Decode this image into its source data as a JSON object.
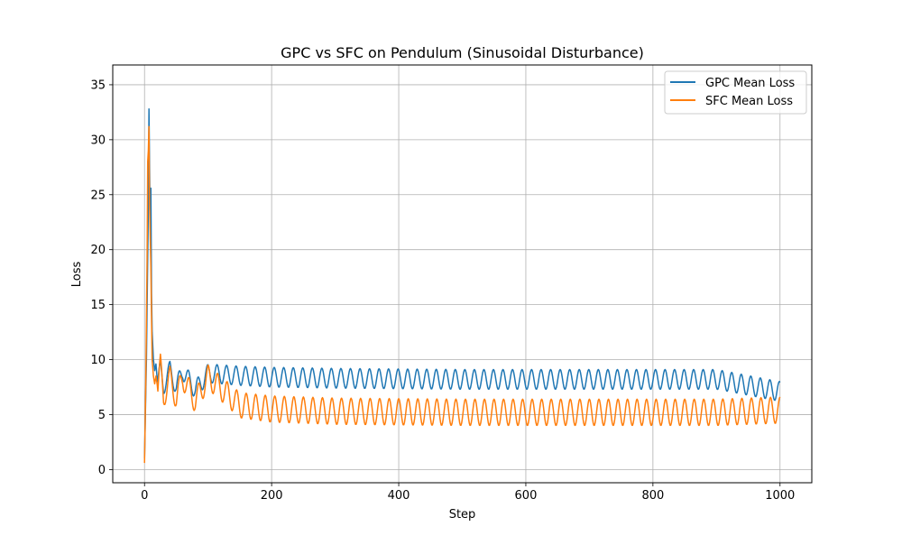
{
  "chart_data": {
    "type": "line",
    "title": "GPC vs SFC on Pendulum (Sinusoidal Disturbance)",
    "xlabel": "Step",
    "ylabel": "Loss",
    "xlim": [
      -50,
      1050
    ],
    "ylim": [
      -1.2,
      36.8
    ],
    "xticks": [
      0,
      200,
      400,
      600,
      800,
      1000
    ],
    "yticks": [
      0,
      5,
      10,
      15,
      20,
      25,
      30,
      35
    ],
    "grid": true,
    "legend": "top-right",
    "series": [
      {
        "name": "GPC Mean Loss",
        "color": "#1f77b4",
        "x": [
          0,
          3,
          6,
          7,
          8,
          9,
          10,
          11,
          12,
          14,
          16,
          18,
          20,
          25,
          30,
          40,
          50,
          60,
          80,
          100,
          150,
          200,
          300,
          500,
          700,
          900,
          1000
        ],
        "y": [
          1.0,
          10.0,
          24.0,
          32.8,
          27.0,
          22.0,
          25.6,
          16.0,
          12.5,
          10.0,
          9.0,
          9.6,
          8.2,
          10.0,
          8.4,
          9.9,
          8.3,
          9.8,
          8.1,
          9.6,
          9.4,
          9.3,
          9.2,
          9.1,
          9.1,
          9.1,
          8.0
        ]
      },
      {
        "name": "SFC Mean Loss",
        "color": "#ff7f0e",
        "x": [
          0,
          2,
          4,
          5,
          6,
          7,
          8,
          9,
          10,
          11,
          12,
          14,
          16,
          18,
          20,
          25,
          30,
          40,
          50,
          60,
          80,
          100,
          150,
          200,
          300,
          500,
          700,
          900,
          1000
        ],
        "y": [
          0.6,
          8.0,
          19.0,
          28.0,
          29.0,
          31.2,
          24.0,
          21.0,
          18.5,
          14.0,
          10.0,
          8.5,
          7.8,
          8.5,
          7.7,
          10.5,
          7.6,
          9.4,
          7.5,
          9.4,
          7.3,
          9.5,
          7.0,
          6.7,
          6.5,
          6.4,
          6.4,
          6.4,
          6.6
        ]
      }
    ]
  }
}
